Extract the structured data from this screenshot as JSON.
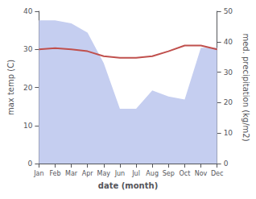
{
  "chart_data": {
    "type": "line",
    "xlabel": "date (month)",
    "ylabel": "max temp (C)",
    "y2label": "med. precipitation (kg/m2)",
    "categories": [
      "Jan",
      "Feb",
      "Mar",
      "Apr",
      "May",
      "Jun",
      "Jul",
      "Aug",
      "Sep",
      "Oct",
      "Nov",
      "Dec"
    ],
    "series": [
      {
        "type": "area",
        "axis": "y2",
        "color": "#c5cef0",
        "values": [
          47.0,
          47.0,
          46.0,
          43.0,
          33.0,
          18.0,
          18.0,
          24.0,
          22.0,
          21.0,
          38.0,
          38.0
        ]
      },
      {
        "type": "line",
        "color": "#c0504d",
        "values": [
          30.0,
          30.3,
          30.0,
          29.5,
          28.2,
          27.8,
          27.8,
          28.2,
          29.5,
          31.0,
          31.0,
          30.0
        ]
      }
    ],
    "ylim": [
      0,
      40
    ],
    "yticks": [
      0,
      10,
      20,
      30,
      40
    ],
    "y2lim": [
      0,
      50
    ],
    "y2ticks": [
      0,
      10,
      20,
      30,
      40,
      50
    ],
    "grid": false
  }
}
